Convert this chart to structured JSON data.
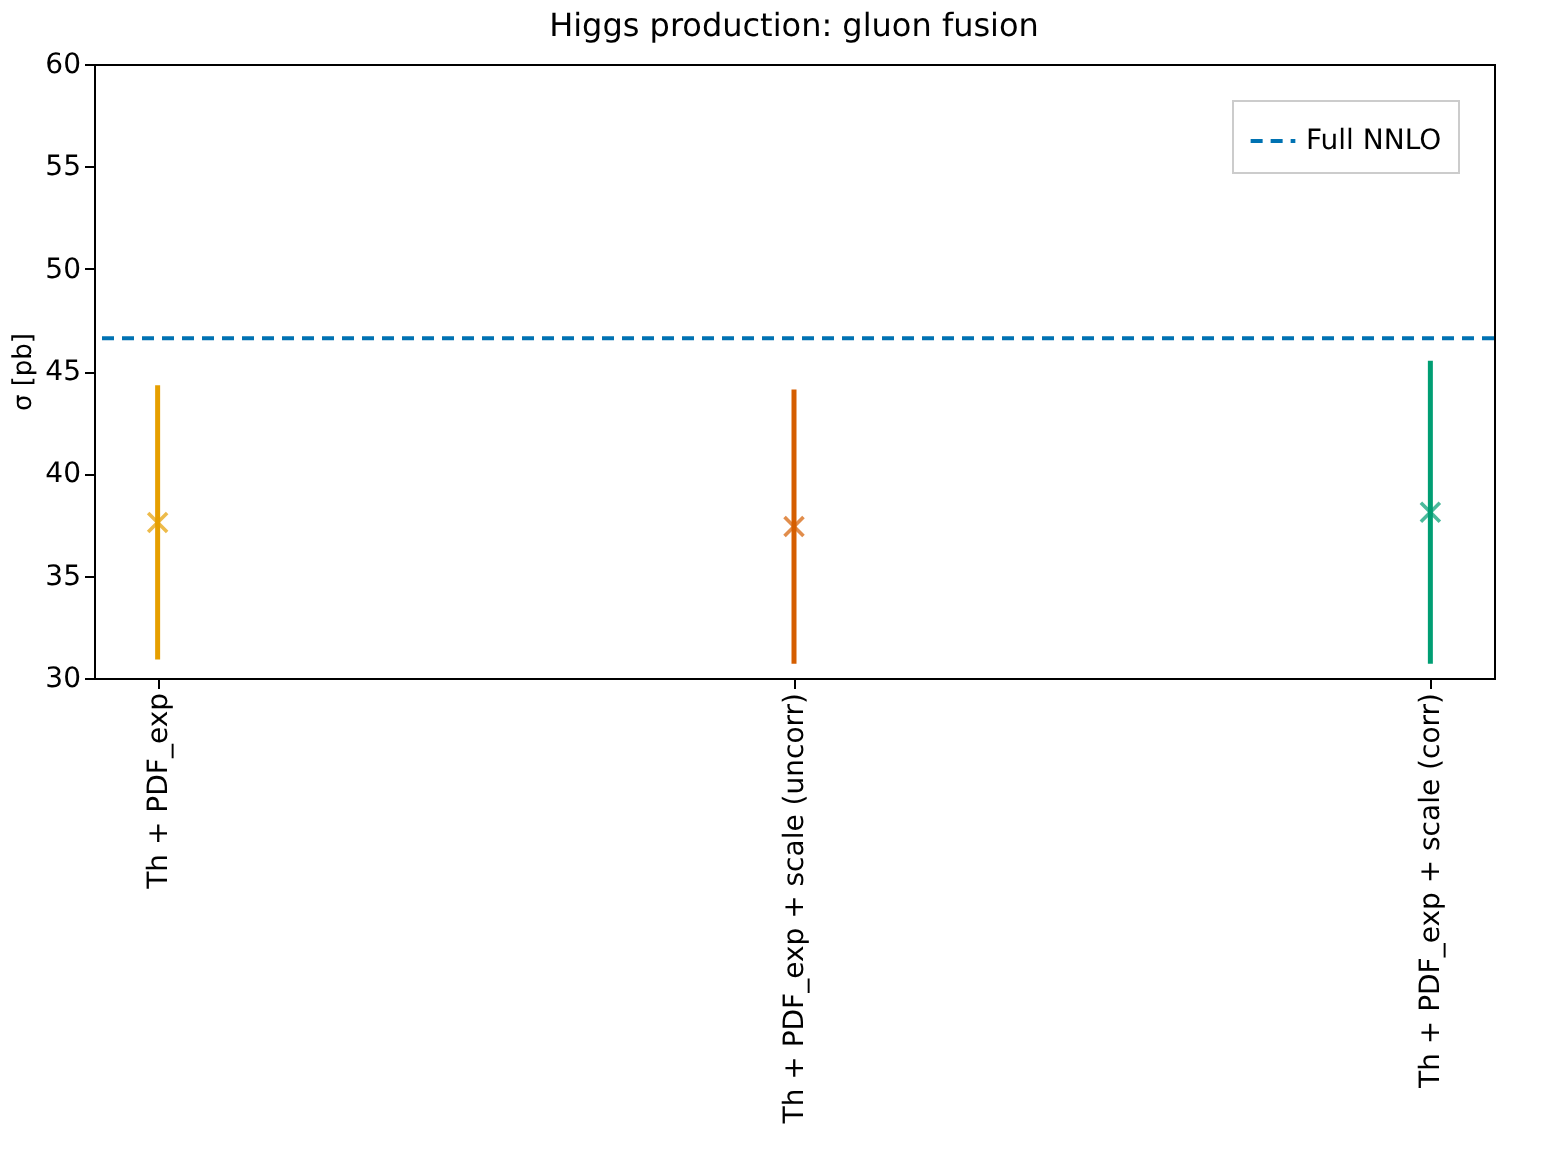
{
  "chart_data": {
    "type": "scatter",
    "title": "Higgs production: gluon fusion",
    "ylabel": "σ [pb]",
    "categories": [
      "Th + PDF_exp",
      "Th + PDF_exp + scale (uncorr)",
      "Th + PDF_exp + scale (corr)"
    ],
    "values": [
      37.6,
      37.4,
      38.1
    ],
    "errors": [
      [
        30.9,
        44.3
      ],
      [
        30.7,
        44.1
      ],
      [
        30.7,
        45.5
      ]
    ],
    "colors": [
      "#e69f00",
      "#d55e00",
      "#009e73"
    ],
    "marker": "cross",
    "ylim": [
      30,
      60
    ],
    "yticks": [
      30,
      35,
      40,
      45,
      50,
      55,
      60
    ],
    "ref_lines": [
      {
        "axis": "y",
        "value": 46.6,
        "label": "Full NNLO",
        "color": "#0072b2",
        "line_style": "dashed"
      }
    ],
    "legend": "top right",
    "grid": false
  }
}
